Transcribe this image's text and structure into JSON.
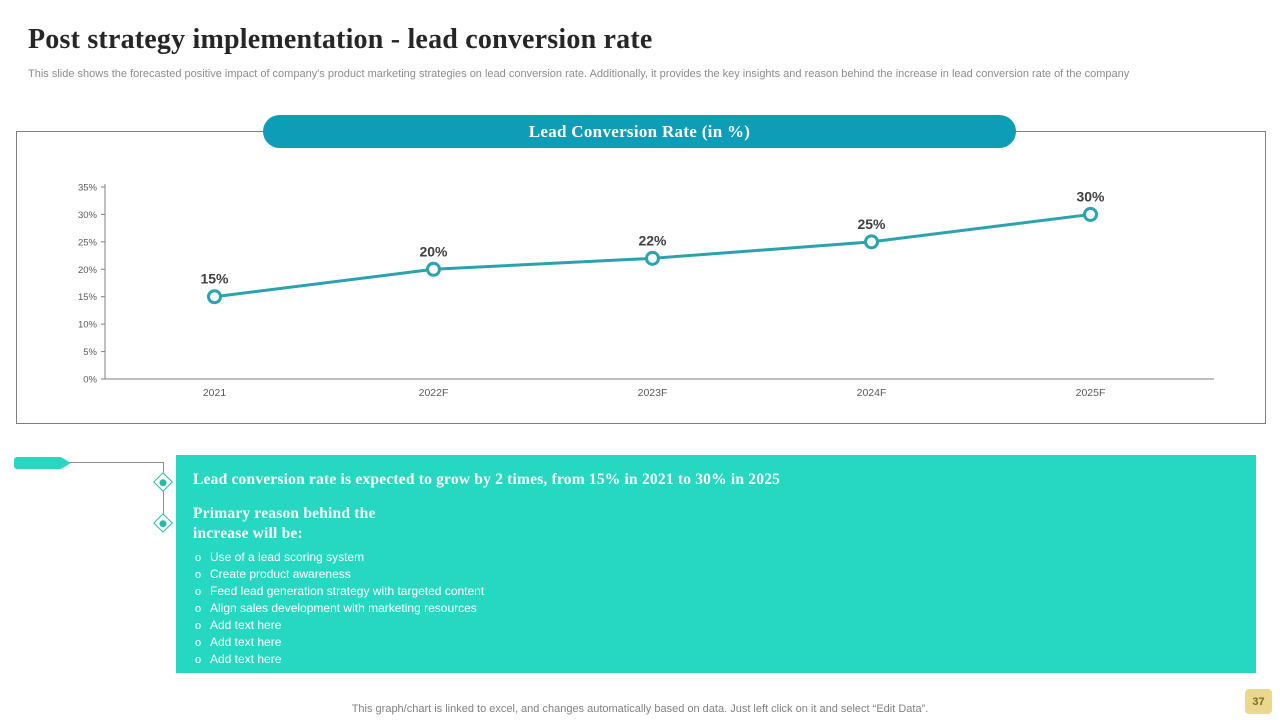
{
  "slide": {
    "title": "Post strategy implementation - lead conversion rate",
    "subtitle": "This slide shows the forecasted positive impact of company's product marketing strategies on lead conversion rate. Additionally, it provides the key insights and reason behind the increase in lead conversion rate of the company",
    "footer_note": "This graph/chart is linked to excel, and changes automatically based on data. Just left click on it and select “Edit Data”.",
    "page_number": "37"
  },
  "chart_data": {
    "type": "line",
    "title": "Lead Conversion Rate (in %)",
    "categories": [
      "2021",
      "2022F",
      "2023F",
      "2024F",
      "2025F"
    ],
    "series": [
      {
        "name": "Lead Conversion Rate",
        "values": [
          15,
          20,
          22,
          25,
          30
        ]
      }
    ],
    "data_labels": [
      "15%",
      "20%",
      "22%",
      "25%",
      "30%"
    ],
    "ylim": [
      0,
      35
    ],
    "ytick_step": 5,
    "ytick_labels": [
      "0%",
      "5%",
      "10%",
      "15%",
      "20%",
      "25%",
      "30%",
      "35%"
    ],
    "xlabel": "",
    "ylabel": "",
    "grid": false,
    "legend": "none",
    "line_color": "#2aa3ae",
    "marker_fill": "#ffffff",
    "axis_color": "#808080",
    "tick_label_color": "#595959",
    "data_label_color": "#404040"
  },
  "insights": {
    "headline": "Lead conversion rate is expected to grow by 2 times, from 15% in 2021 to 30% in 2025",
    "sub_headline": "Primary reason behind the increase will be:",
    "bullet_marker": "o",
    "bullets": [
      "Use of a lead scoring system",
      "Create product awareness",
      "Feed lead generation strategy with targeted content",
      "Align sales development with marketing resources",
      "Add text here",
      "Add text here",
      "Add text here"
    ]
  },
  "colors": {
    "pill_teal": "#0e9db6",
    "box_turquoise": "#26d8c2",
    "bar_turquoise": "#2bd5bf",
    "badge_yellow": "#ebd88c"
  }
}
